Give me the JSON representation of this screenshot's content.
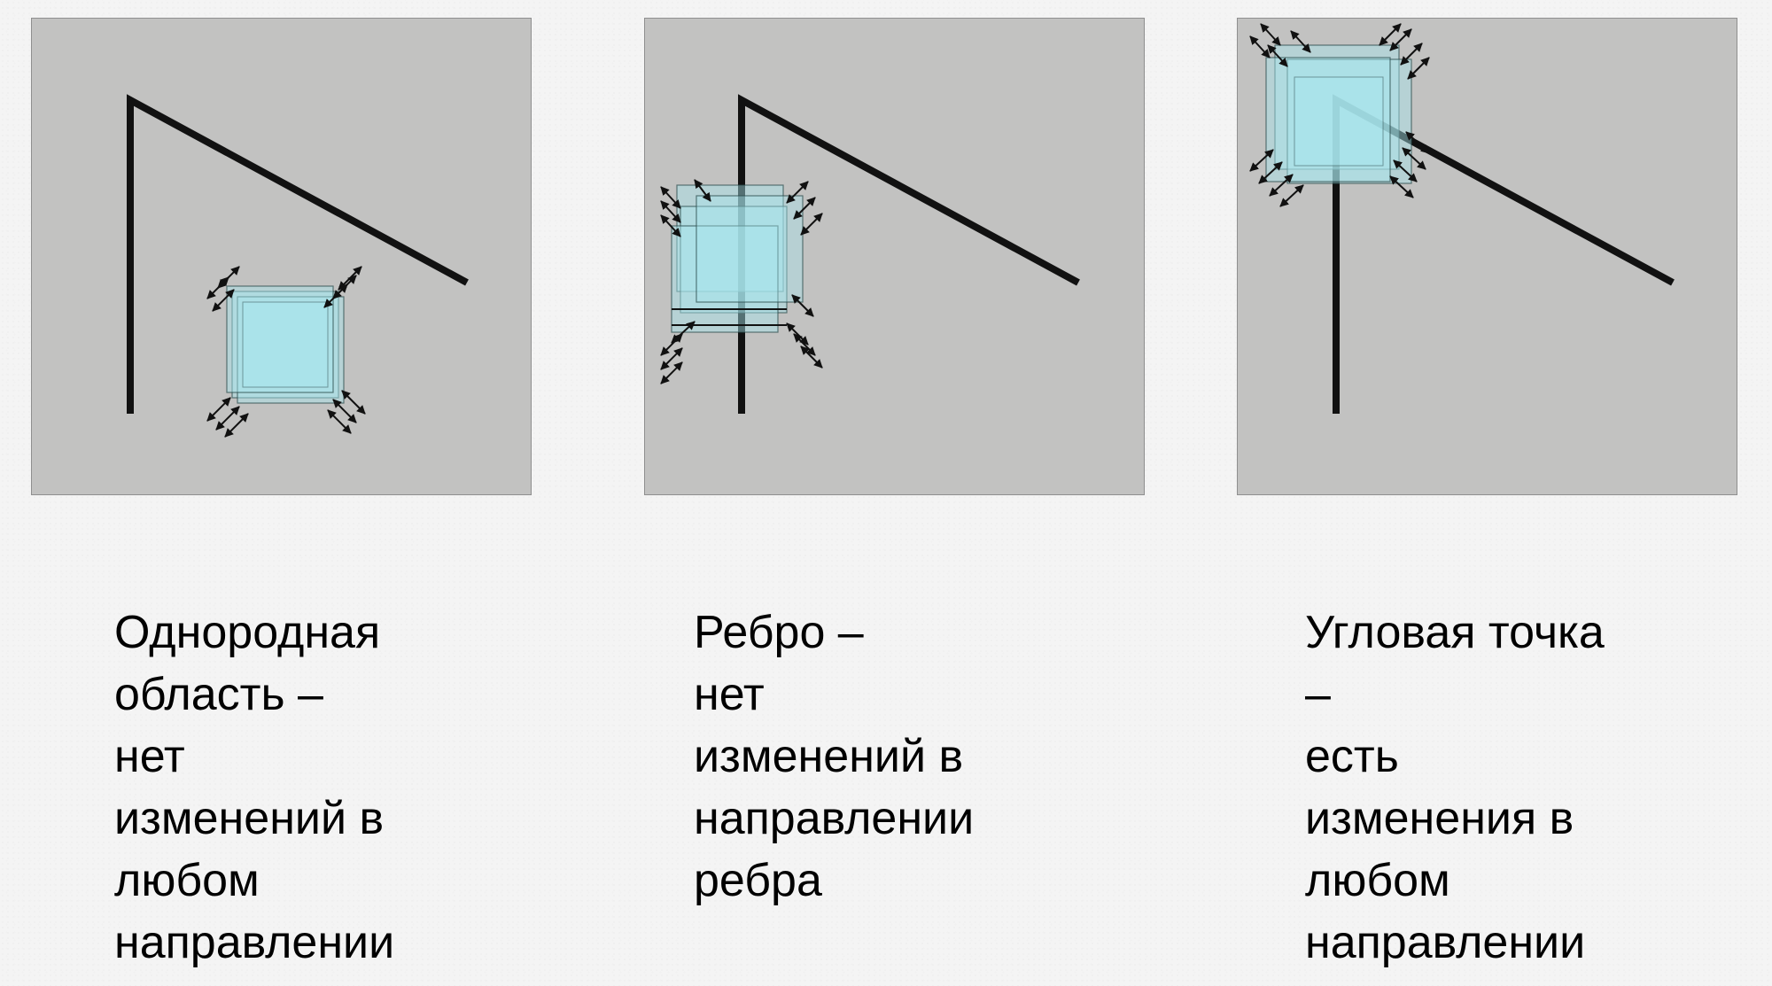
{
  "panels": [
    {
      "id": "flat",
      "caption": "Однородная\nобласть –\nнет\nизменений в\nлюбом\nнаправлении"
    },
    {
      "id": "edge",
      "caption": "Ребро –\nнет\nизменений в\nнаправлении\nребра"
    },
    {
      "id": "corner",
      "caption": "Угловая точка\n–\nесть\nизменения в\nлюбом\nнаправлении"
    }
  ],
  "colors": {
    "panel_background": "#c2c2c1",
    "window_fill": "#a8e6ee",
    "line": "#111111"
  },
  "icons": {
    "window": "shifted-window-with-arrows",
    "arrow": "double-headed-arrow"
  }
}
